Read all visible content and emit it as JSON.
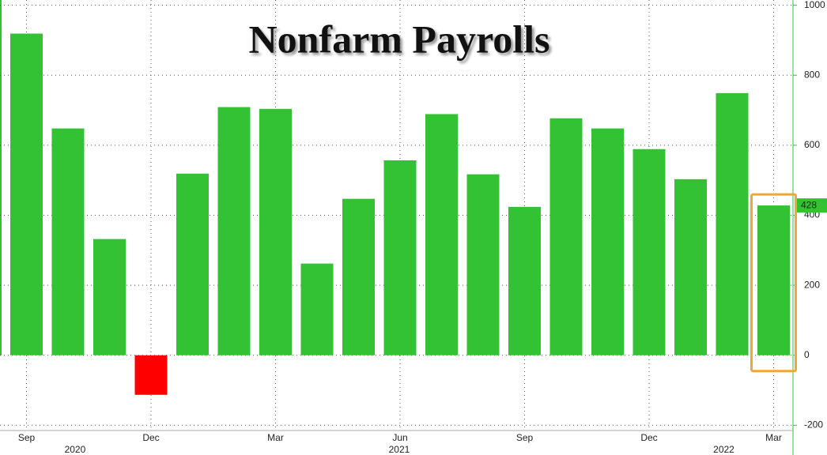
{
  "chart_data": {
    "type": "bar",
    "title": "Nonfarm Payrolls",
    "categories": [
      "Sep",
      null,
      null,
      "Dec",
      null,
      null,
      "Mar",
      null,
      null,
      "Jun",
      null,
      null,
      "Sep",
      null,
      null,
      "Dec",
      null,
      null,
      "Mar"
    ],
    "year_labels": [
      "2020",
      "2021",
      "2022"
    ],
    "values": [
      919,
      648,
      332,
      -113,
      519,
      709,
      704,
      262,
      447,
      557,
      689,
      517,
      424,
      677,
      648,
      589,
      503,
      749,
      428
    ],
    "color": "#33c233",
    "negative_color": "#ff0000",
    "highlight_color": "#f0a830",
    "ylim": [
      -215,
      1015
    ],
    "yticks": [
      -200,
      0,
      200,
      400,
      600,
      800,
      1000
    ],
    "grid": true
  }
}
